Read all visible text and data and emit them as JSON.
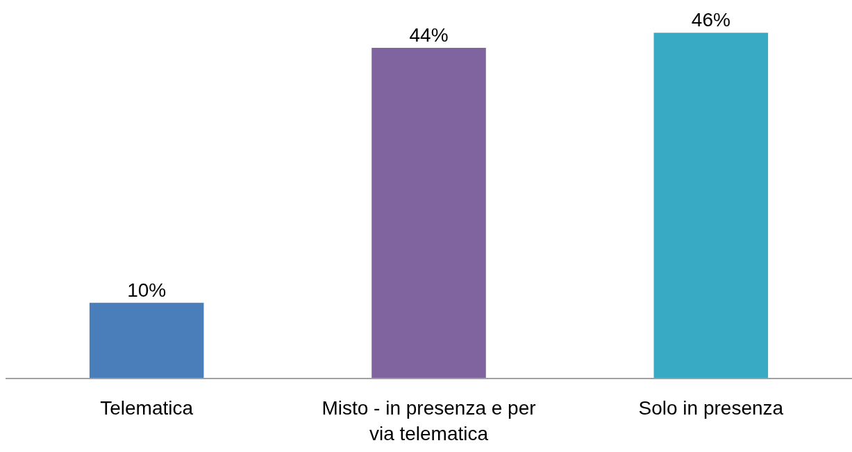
{
  "chart_data": {
    "type": "bar",
    "categories": [
      "Telematica",
      "Misto - in presenza e per via telematica",
      "Solo in presenza"
    ],
    "values": [
      10,
      44,
      46
    ],
    "colors": [
      "#4a7eba",
      "#8064a0",
      "#38aac4"
    ],
    "value_labels": [
      "10%",
      "44%",
      "46%"
    ],
    "ylim": [
      0,
      50
    ],
    "tick_labels": "x"
  }
}
